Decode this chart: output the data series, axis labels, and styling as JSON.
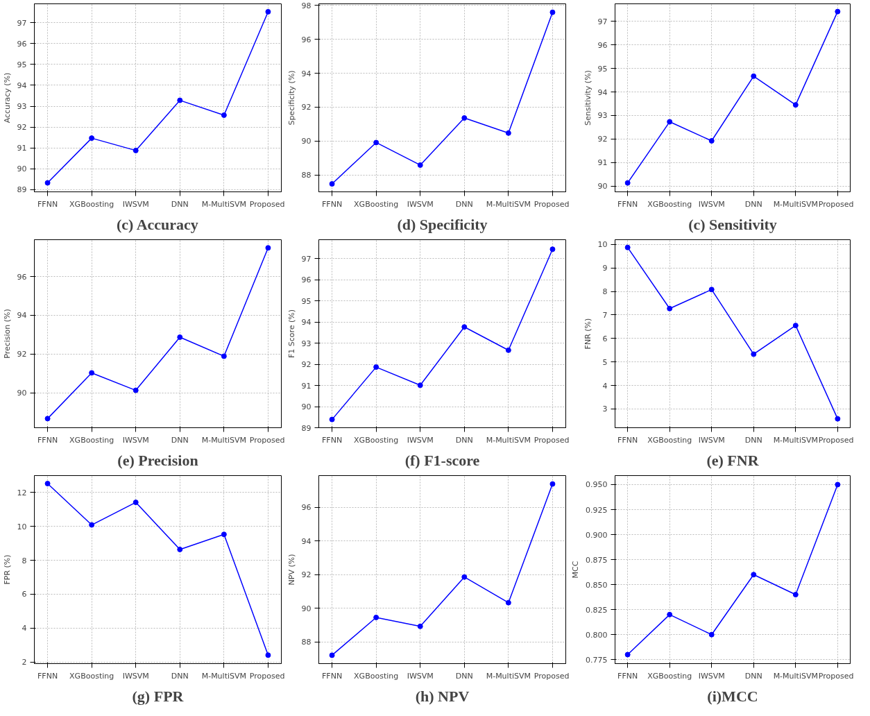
{
  "chart_data": [
    {
      "type": "line",
      "title": "(c) Accuracy",
      "ylabel": "Accuracy (%)",
      "categories": [
        "FFNN",
        "XGBoosting",
        "IWSVM",
        "DNN",
        "M-MultiSVM",
        "Proposed"
      ],
      "values": [
        89.33,
        91.47,
        90.88,
        93.28,
        92.57,
        97.52
      ],
      "color": "#0000ff",
      "marker": "circle",
      "grid": true,
      "ylim": [
        88.9,
        97.9
      ],
      "yticks": [
        89,
        90,
        91,
        92,
        93,
        94,
        95,
        96,
        97
      ]
    },
    {
      "type": "line",
      "title": "(d) Specificity",
      "ylabel": "Specificity (%)",
      "categories": [
        "FFNN",
        "XGBoosting",
        "IWSVM",
        "DNN",
        "M-MultiSVM",
        "Proposed"
      ],
      "values": [
        87.47,
        89.91,
        88.58,
        91.36,
        90.47,
        97.6
      ],
      "color": "#0000ff",
      "marker": "circle",
      "grid": true,
      "ylim": [
        87.0,
        98.1
      ],
      "yticks": [
        88,
        90,
        92,
        94,
        96,
        98
      ]
    },
    {
      "type": "line",
      "title": "(c) Sensitivity",
      "ylabel": "Sensitivity (%)",
      "categories": [
        "FFNN",
        "XGBoosting",
        "IWSVM",
        "DNN",
        "M-MultiSVM",
        "Proposed"
      ],
      "values": [
        90.13,
        92.73,
        91.92,
        94.67,
        93.45,
        97.42
      ],
      "color": "#0000ff",
      "marker": "circle",
      "grid": true,
      "ylim": [
        89.75,
        97.75
      ],
      "yticks": [
        90,
        91,
        92,
        93,
        94,
        95,
        96,
        97
      ]
    },
    {
      "type": "line",
      "title": "(e) Precision",
      "ylabel": "Precision (%)",
      "categories": [
        "FFNN",
        "XGBoosting",
        "IWSVM",
        "DNN",
        "M-MultiSVM",
        "Proposed"
      ],
      "values": [
        88.67,
        91.03,
        90.13,
        92.87,
        91.89,
        97.48
      ],
      "color": "#0000ff",
      "marker": "circle",
      "grid": true,
      "ylim": [
        88.2,
        97.9
      ],
      "yticks": [
        90,
        92,
        94,
        96
      ]
    },
    {
      "type": "line",
      "title": "(f) F1-score",
      "ylabel": "F1 Score (%)",
      "categories": [
        "FFNN",
        "XGBoosting",
        "IWSVM",
        "DNN",
        "M-MultiSVM",
        "Proposed"
      ],
      "values": [
        89.39,
        91.87,
        91.01,
        93.77,
        92.67,
        97.45
      ],
      "color": "#0000ff",
      "marker": "circle",
      "grid": true,
      "ylim": [
        89.0,
        97.9
      ],
      "yticks": [
        89,
        90,
        91,
        92,
        93,
        94,
        95,
        96,
        97
      ]
    },
    {
      "type": "line",
      "title": "(e) FNR",
      "ylabel": "FNR (%)",
      "categories": [
        "FFNN",
        "XGBoosting",
        "IWSVM",
        "DNN",
        "M-MultiSVM",
        "Proposed"
      ],
      "values": [
        9.87,
        7.27,
        8.08,
        5.33,
        6.55,
        2.58
      ],
      "color": "#0000ff",
      "marker": "circle",
      "grid": true,
      "ylim": [
        2.2,
        10.2
      ],
      "yticks": [
        3,
        4,
        5,
        6,
        7,
        8,
        9,
        10
      ]
    },
    {
      "type": "line",
      "title": "(g) FPR",
      "ylabel": "FPR (%)",
      "categories": [
        "FFNN",
        "XGBoosting",
        "IWSVM",
        "DNN",
        "M-MultiSVM",
        "Proposed"
      ],
      "values": [
        12.53,
        10.09,
        11.42,
        8.64,
        9.53,
        2.4
      ],
      "color": "#0000ff",
      "marker": "circle",
      "grid": true,
      "ylim": [
        1.9,
        13.0
      ],
      "yticks": [
        2,
        4,
        6,
        8,
        10,
        12
      ]
    },
    {
      "type": "line",
      "title": "(h) NPV",
      "ylabel": "NPV (%)",
      "categories": [
        "FFNN",
        "XGBoosting",
        "IWSVM",
        "DNN",
        "M-MultiSVM",
        "Proposed"
      ],
      "values": [
        87.2,
        89.45,
        88.92,
        91.86,
        90.33,
        97.4
      ],
      "color": "#0000ff",
      "marker": "circle",
      "grid": true,
      "ylim": [
        86.7,
        97.9
      ],
      "yticks": [
        88,
        90,
        92,
        94,
        96
      ]
    },
    {
      "type": "line",
      "title": "(i)MCC",
      "ylabel": "MCC",
      "categories": [
        "FFNN",
        "XGBoosting",
        "IWSVM",
        "DNN",
        "M-MultiSVM",
        "Proposed"
      ],
      "values": [
        0.78,
        0.82,
        0.8,
        0.86,
        0.84,
        0.95
      ],
      "color": "#0000ff",
      "marker": "circle",
      "grid": true,
      "ylim": [
        0.771,
        0.959
      ],
      "yticks": [
        {
          "value": 0.775,
          "label": "0.775"
        },
        {
          "value": 0.8,
          "label": "0.800"
        },
        {
          "value": 0.825,
          "label": "0.825"
        },
        {
          "value": 0.85,
          "label": "0.850"
        },
        {
          "value": 0.875,
          "label": "0.875"
        },
        {
          "value": 0.9,
          "label": "0.900"
        },
        {
          "value": 0.925,
          "label": "0.925"
        },
        {
          "value": 0.95,
          "label": "0.950"
        }
      ]
    }
  ]
}
